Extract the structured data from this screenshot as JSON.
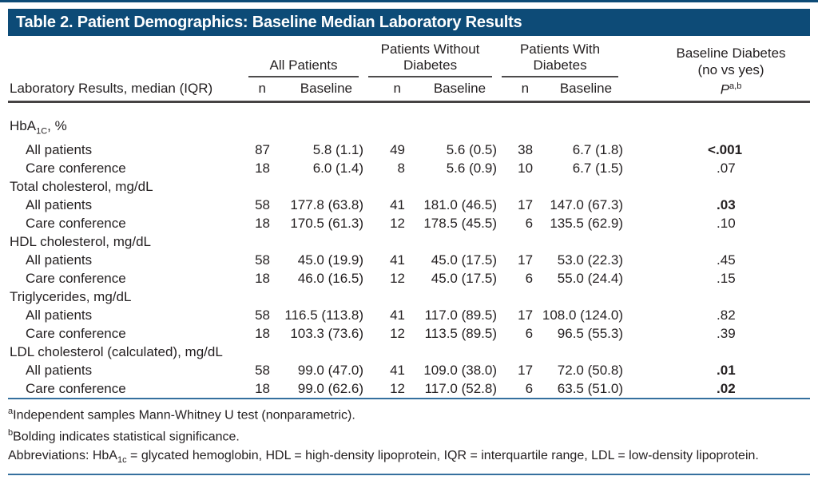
{
  "title": "Table 2. Patient Demographics: Baseline Median Laboratory Results",
  "colors": {
    "header_bar": "#0d4b77",
    "rule_blue": "#35709e",
    "rule_dark": "#454243",
    "text": "#231f20"
  },
  "header": {
    "stub": "Laboratory Results, median (IQR)",
    "groups": [
      "All Patients",
      "Patients Without Diabetes",
      "Patients With Diabetes"
    ],
    "subcols": [
      "n",
      "Baseline"
    ],
    "p_col": {
      "line1": "Baseline Diabetes",
      "line2": "(no vs yes)",
      "symbol": "P",
      "sup": "a,b"
    }
  },
  "table": {
    "rows": [
      {
        "kind": "category",
        "pre": "HbA",
        "sub": "1C",
        "post": ", %"
      },
      {
        "kind": "data",
        "label": "All patients",
        "cells": [
          "87",
          "5.8 (1.1)",
          "49",
          "5.6 (0.5)",
          "38",
          "6.7 (1.8)"
        ],
        "p": "<.001",
        "p_bold": true
      },
      {
        "kind": "data",
        "label": "Care conference",
        "cells": [
          "18",
          "6.0 (1.4)",
          "8",
          "5.6 (0.9)",
          "10",
          "6.7 (1.5)"
        ],
        "p": ".07",
        "p_bold": false
      },
      {
        "kind": "category",
        "label": "Total cholesterol, mg/dL"
      },
      {
        "kind": "data",
        "label": "All patients",
        "cells": [
          "58",
          "177.8 (63.8)",
          "41",
          "181.0 (46.5)",
          "17",
          "147.0 (67.3)"
        ],
        "p": ".03",
        "p_bold": true
      },
      {
        "kind": "data",
        "label": "Care conference",
        "cells": [
          "18",
          "170.5 (61.3)",
          "12",
          "178.5 (45.5)",
          "6",
          "135.5 (62.9)"
        ],
        "p": ".10",
        "p_bold": false
      },
      {
        "kind": "category",
        "label": "HDL cholesterol, mg/dL"
      },
      {
        "kind": "data",
        "label": "All patients",
        "cells": [
          "58",
          "45.0 (19.9)",
          "41",
          "45.0 (17.5)",
          "17",
          "53.0 (22.3)"
        ],
        "p": ".45",
        "p_bold": false
      },
      {
        "kind": "data",
        "label": "Care conference",
        "cells": [
          "18",
          "46.0 (16.5)",
          "12",
          "45.0 (17.5)",
          "6",
          "55.0 (24.4)"
        ],
        "p": ".15",
        "p_bold": false
      },
      {
        "kind": "category",
        "label": "Triglycerides, mg/dL"
      },
      {
        "kind": "data",
        "label": "All patients",
        "cells": [
          "58",
          "116.5 (113.8)",
          "41",
          "117.0 (89.5)",
          "17",
          "108.0 (124.0)"
        ],
        "p": ".82",
        "p_bold": false
      },
      {
        "kind": "data",
        "label": "Care conference",
        "cells": [
          "18",
          "103.3 (73.6)",
          "12",
          "113.5 (89.5)",
          "6",
          "96.5 (55.3)"
        ],
        "p": ".39",
        "p_bold": false
      },
      {
        "kind": "category",
        "label": "LDL cholesterol (calculated), mg/dL"
      },
      {
        "kind": "data",
        "label": "All patients",
        "cells": [
          "58",
          "99.0 (47.0)",
          "41",
          "109.0 (38.0)",
          "17",
          "72.0 (50.8)"
        ],
        "p": ".01",
        "p_bold": true
      },
      {
        "kind": "data",
        "label": "Care conference",
        "cells": [
          "18",
          "99.0 (62.6)",
          "12",
          "117.0 (52.8)",
          "6",
          "63.5 (51.0)"
        ],
        "p": ".02",
        "p_bold": true
      }
    ]
  },
  "footnotes": {
    "a_sup": "a",
    "a_text": "Independent samples Mann-Whitney U test (nonparametric).",
    "b_sup": "b",
    "b_text": "Bolding indicates statistical significance.",
    "abbr_pre": "Abbreviations:  HbA",
    "abbr_sub": "1c",
    "abbr_post": " = glycated hemoglobin, HDL = high-density lipoprotein, IQR = interquartile range,  LDL = low-density lipoprotein."
  }
}
